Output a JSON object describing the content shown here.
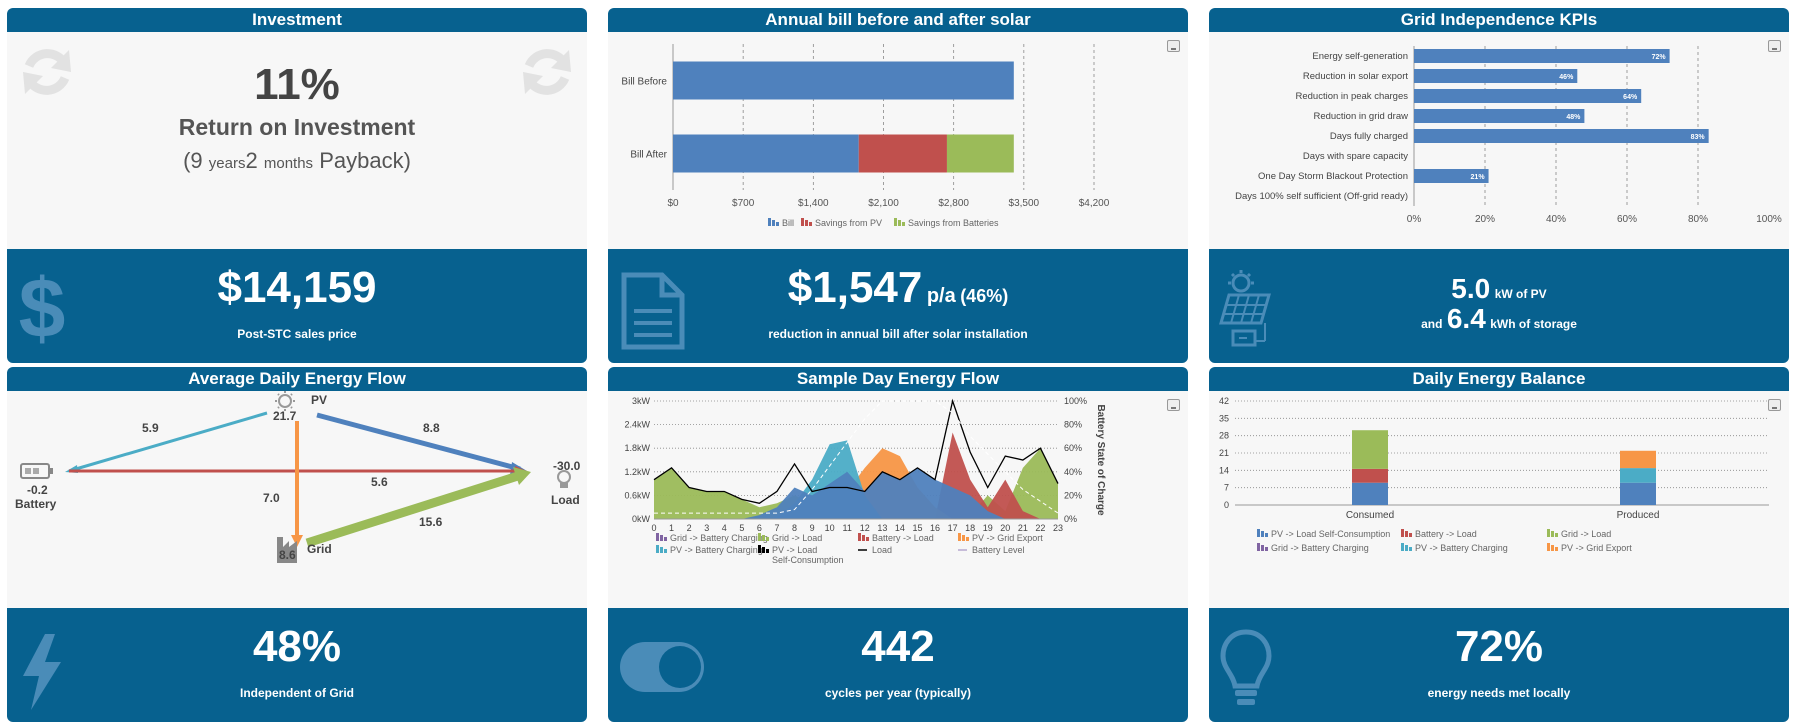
{
  "investment": {
    "title": "Investment",
    "roi_value": "11%",
    "roi_label": "Return on Investment",
    "payback_open": "(",
    "payback_years": "9",
    "payback_years_unit": "years",
    "payback_months": "2",
    "payback_months_unit": "months",
    "payback_close": "Payback)",
    "price": "$14,159",
    "price_label": "Post-STC sales price"
  },
  "annual_bill": {
    "title": "Annual bill before and after solar",
    "saving": "$1,547",
    "saving_unit": "p/a",
    "saving_pct": "(46%)",
    "saving_label": "reduction in annual bill after solar installation"
  },
  "kpi": {
    "title": "Grid Independence KPIs",
    "pv_value": "5.0",
    "pv_unit": "kW of PV",
    "and": "and",
    "storage_value": "6.4",
    "storage_unit": "kWh of storage"
  },
  "avg_flow": {
    "title": "Average Daily Energy Flow",
    "pv_label": "PV",
    "pv_value": "21.7",
    "battery_label": "Battery",
    "battery_value": "-0.2",
    "load_label": "Load",
    "load_value": "-30.0",
    "grid_label": "Grid",
    "grid_value": "8.6",
    "flow_pv_battery": "5.9",
    "flow_pv_load": "8.8",
    "flow_battery_load": "5.6",
    "flow_pv_grid": "7.0",
    "flow_grid_load": "15.6",
    "independent_value": "48%",
    "independent_label": "Independent of Grid"
  },
  "sample_day": {
    "title": "Sample Day Energy Flow",
    "cycles_value": "442",
    "cycles_label": "cycles per year (typically)"
  },
  "balance": {
    "title": "Daily Energy Balance",
    "local_value": "72%",
    "local_label": "energy needs met locally"
  },
  "colors": {
    "blue": "#4f81bd",
    "red": "#c0504d",
    "green": "#9bbb59",
    "cyan": "#4bacc6",
    "orange": "#f79646",
    "purple": "#8064a2",
    "navy": "#07618f"
  },
  "chart_data": [
    {
      "id": "bill",
      "type": "bar",
      "orientation": "horizontal",
      "stacked": true,
      "categories": [
        "Bill Before",
        "Bill After"
      ],
      "series": [
        {
          "name": "Bill",
          "values": [
            3400,
            1853
          ]
        },
        {
          "name": "Savings from PV",
          "values": [
            0,
            880
          ]
        },
        {
          "name": "Savings from Batteries",
          "values": [
            0,
            667
          ]
        }
      ],
      "xlim": [
        0,
        4200
      ],
      "x_ticks": [
        "$0",
        "$700",
        "$1,400",
        "$2,100",
        "$2,800",
        "$3,500",
        "$4,200"
      ],
      "legend": "bottom"
    },
    {
      "id": "kpis",
      "type": "bar",
      "orientation": "horizontal",
      "categories": [
        "Energy self-generation",
        "Reduction in solar export",
        "Reduction in peak charges",
        "Reduction in grid draw",
        "Days fully charged",
        "Days with spare capacity",
        "One Day Storm Blackout Protection",
        "Days 100% self sufficient (Off-grid ready)"
      ],
      "values": [
        72,
        46,
        64,
        48,
        83,
        0,
        21,
        0
      ],
      "labels": [
        "72%",
        "46%",
        "64%",
        "48%",
        "83%",
        "",
        "21%",
        ""
      ],
      "xlim": [
        0,
        100
      ],
      "x_ticks": [
        "0%",
        "20%",
        "40%",
        "60%",
        "80%",
        "100%"
      ]
    },
    {
      "id": "sample_day",
      "type": "area",
      "x": [
        0,
        1,
        2,
        3,
        4,
        5,
        6,
        7,
        8,
        9,
        10,
        11,
        12,
        13,
        14,
        15,
        16,
        17,
        18,
        19,
        20,
        21,
        22,
        23
      ],
      "x_ticks": [
        "0",
        "1",
        "2",
        "3",
        "4",
        "5",
        "6",
        "7",
        "8",
        "9",
        "10",
        "11",
        "12",
        "13",
        "14",
        "15",
        "16",
        "17",
        "18",
        "19",
        "20",
        "21",
        "22",
        "23"
      ],
      "y_ticks": [
        "0kW",
        "0.6kW",
        "1.2kW",
        "1.8kW",
        "2.4kW",
        "3kW"
      ],
      "y2_ticks": [
        "0%",
        "20%",
        "40%",
        "60%",
        "80%",
        "100%"
      ],
      "y2label": "Battery State of Charge",
      "ylim": [
        0,
        3
      ],
      "series": [
        {
          "name": "Grid -> Battery Charging",
          "values": [
            0,
            0,
            0,
            0,
            0,
            0,
            0,
            0,
            0,
            0,
            0,
            0,
            0,
            0,
            0,
            0,
            0,
            0,
            0,
            0,
            0,
            0,
            0,
            0
          ]
        },
        {
          "name": "PV -> Battery Charging",
          "values": [
            0,
            0,
            0,
            0,
            0,
            0,
            0,
            0.05,
            0.4,
            1.0,
            1.9,
            2.0,
            0.6,
            0,
            0,
            0,
            0,
            0,
            0,
            0,
            0,
            0,
            0,
            0
          ]
        },
        {
          "name": "Grid -> Load",
          "values": [
            1.0,
            1.3,
            0.8,
            0.7,
            0.7,
            0.5,
            0.3,
            0.4,
            0.6,
            0.4,
            0,
            0,
            0,
            0,
            0,
            0,
            0,
            0,
            0.1,
            0.6,
            0.2,
            1.3,
            1.8,
            0.9
          ]
        },
        {
          "name": "PV -> Load Self-Consumption",
          "values": [
            0,
            0,
            0,
            0,
            0,
            0,
            0.1,
            0.3,
            0.8,
            0.6,
            0.9,
            1.2,
            0.7,
            1.2,
            1.0,
            1.3,
            1.0,
            0.8,
            0.6,
            0.2,
            0,
            0,
            0,
            0
          ]
        },
        {
          "name": "Battery -> Load",
          "values": [
            0,
            0,
            0,
            0,
            0,
            0,
            0,
            0,
            0,
            0,
            0,
            0,
            0,
            0,
            0,
            0,
            0,
            2.2,
            1.0,
            0.3,
            1.0,
            0.2,
            0,
            0
          ]
        },
        {
          "name": "PV -> Grid Export",
          "values": [
            0,
            0,
            0,
            0,
            0,
            0,
            0,
            0,
            0,
            0,
            0.3,
            0.7,
            1.3,
            1.8,
            1.6,
            0.8,
            0.3,
            0,
            0,
            0,
            0,
            0,
            0,
            0
          ]
        },
        {
          "name": "Load",
          "values": [
            1.0,
            1.3,
            0.8,
            0.7,
            0.7,
            0.5,
            0.4,
            0.7,
            1.4,
            0.7,
            0.8,
            0.8,
            0.7,
            1.2,
            1.0,
            1.3,
            1.0,
            3.0,
            1.7,
            0.8,
            1.6,
            1.5,
            1.8,
            0.9
          ]
        },
        {
          "name": "Battery Level",
          "values": [
            5,
            5,
            5,
            5,
            5,
            5,
            5,
            5,
            8,
            25,
            45,
            65,
            85,
            100,
            100,
            100,
            100,
            90,
            70,
            55,
            40,
            25,
            15,
            5
          ]
        }
      ],
      "legend": "bottom"
    },
    {
      "id": "balance",
      "type": "bar",
      "stacked": true,
      "categories": [
        "Consumed",
        "Produced"
      ],
      "series": [
        {
          "name": "PV -> Load Self-Consumption",
          "values": [
            9,
            9
          ]
        },
        {
          "name": "Battery -> Load",
          "values": [
            5.6,
            0
          ]
        },
        {
          "name": "Grid -> Load",
          "values": [
            15.6,
            0
          ]
        },
        {
          "name": "Grid -> Battery Charging",
          "values": [
            0,
            0
          ]
        },
        {
          "name": "PV -> Battery Charging",
          "values": [
            0,
            5.9
          ]
        },
        {
          "name": "PV -> Grid Export",
          "values": [
            0,
            7
          ]
        }
      ],
      "ylim": [
        0,
        42
      ],
      "y_ticks": [
        "0",
        "7",
        "14",
        "21",
        "28",
        "35",
        "42"
      ],
      "legend": "bottom"
    }
  ]
}
